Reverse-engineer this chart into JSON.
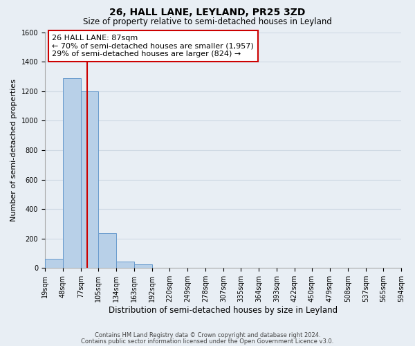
{
  "title": "26, HALL LANE, LEYLAND, PR25 3ZD",
  "subtitle": "Size of property relative to semi-detached houses in Leyland",
  "xlabel": "Distribution of semi-detached houses by size in Leyland",
  "ylabel": "Number of semi-detached properties",
  "footnote1": "Contains HM Land Registry data © Crown copyright and database right 2024.",
  "footnote2": "Contains public sector information licensed under the Open Government Licence v3.0.",
  "bin_edges": [
    19,
    48,
    77,
    105,
    134,
    163,
    192,
    220,
    249,
    278,
    307,
    335,
    364,
    393,
    422,
    450,
    479,
    508,
    537,
    565,
    594
  ],
  "bar_heights": [
    65,
    1290,
    1200,
    235,
    45,
    25,
    0,
    0,
    0,
    0,
    0,
    0,
    0,
    0,
    0,
    0,
    0,
    0,
    0,
    0
  ],
  "bar_color": "#b8d0e8",
  "bar_edge_color": "#6699cc",
  "property_size": 87,
  "property_line_color": "#cc0000",
  "annotation_title": "26 HALL LANE: 87sqm",
  "annotation_line1": "← 70% of semi-detached houses are smaller (1,957)",
  "annotation_line2": "29% of semi-detached houses are larger (824) →",
  "annotation_box_facecolor": "#ffffff",
  "annotation_box_edgecolor": "#cc0000",
  "ylim": [
    0,
    1600
  ],
  "yticks": [
    0,
    200,
    400,
    600,
    800,
    1000,
    1200,
    1400,
    1600
  ],
  "bg_color": "#e8eef4",
  "grid_color": "#d0dae4",
  "title_fontsize": 10,
  "subtitle_fontsize": 8.5,
  "xlabel_fontsize": 8.5,
  "ylabel_fontsize": 8,
  "tick_fontsize": 7,
  "annotation_fontsize": 8
}
